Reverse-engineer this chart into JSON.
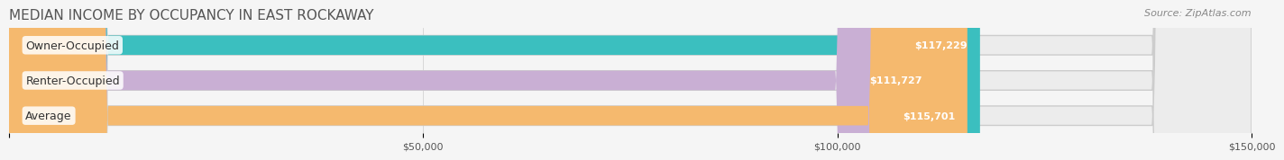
{
  "title": "MEDIAN INCOME BY OCCUPANCY IN EAST ROCKAWAY",
  "source": "Source: ZipAtlas.com",
  "categories": [
    "Owner-Occupied",
    "Renter-Occupied",
    "Average"
  ],
  "values": [
    117229,
    111727,
    115701
  ],
  "labels": [
    "$117,229",
    "$111,727",
    "$115,701"
  ],
  "bar_colors": [
    "#3bbfbf",
    "#c9afd4",
    "#f5b96e"
  ],
  "bar_bg_color": "#e8e8e8",
  "background_color": "#f5f5f5",
  "xlim": [
    0,
    150000
  ],
  "xticks": [
    0,
    50000,
    100000,
    150000
  ],
  "xticklabels": [
    "",
    "$50,000",
    "$100,000",
    "$150,000"
  ],
  "title_fontsize": 11,
  "source_fontsize": 8,
  "bar_label_fontsize": 8,
  "cat_label_fontsize": 9
}
